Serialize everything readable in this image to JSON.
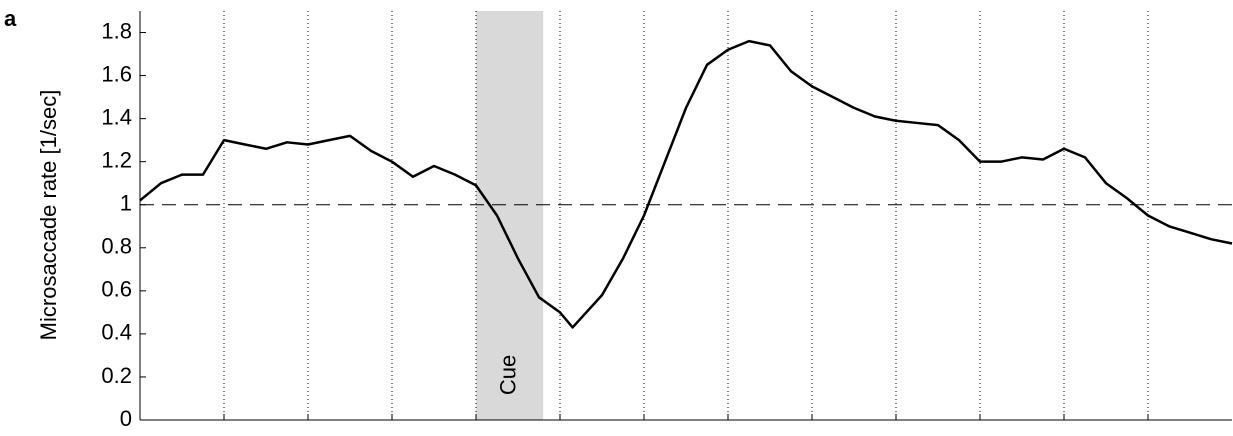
{
  "chart_data": {
    "type": "line",
    "panel_label": "a",
    "ylabel": "Microsaccade rate [1/sec]",
    "annotation": "Cue",
    "span": [
      4,
      4.8
    ],
    "span_color": "#d9d9d9",
    "hline": 1,
    "x": [
      0,
      0.25,
      0.5,
      0.75,
      1,
      1.25,
      1.5,
      1.75,
      2,
      2.25,
      2.5,
      2.75,
      3,
      3.25,
      3.5,
      3.75,
      4,
      4.25,
      4.5,
      4.75,
      5,
      5.15,
      5.5,
      5.75,
      6,
      6.25,
      6.5,
      6.75,
      7,
      7.25,
      7.5,
      7.75,
      8,
      8.25,
      8.5,
      8.75,
      9,
      9.25,
      9.5,
      9.75,
      10,
      10.25,
      10.5,
      10.75,
      11,
      11.25,
      11.5,
      11.75,
      12,
      12.25,
      12.5,
      12.75,
      13
    ],
    "series": [
      {
        "color": "#000000",
        "values": [
          1.02,
          1.1,
          1.14,
          1.14,
          1.3,
          1.28,
          1.26,
          1.29,
          1.28,
          1.3,
          1.32,
          1.25,
          1.2,
          1.13,
          1.18,
          1.14,
          1.09,
          0.95,
          0.75,
          0.57,
          0.5,
          0.43,
          0.58,
          0.75,
          0.95,
          1.2,
          1.45,
          1.65,
          1.72,
          1.76,
          1.74,
          1.62,
          1.55,
          1.5,
          1.45,
          1.41,
          1.39,
          1.38,
          1.37,
          1.3,
          1.2,
          1.2,
          1.22,
          1.21,
          1.26,
          1.22,
          1.1,
          1.03,
          0.95,
          0.9,
          0.87,
          0.84,
          0.82
        ]
      }
    ],
    "xlim": [
      0,
      13
    ],
    "xticks": [
      1,
      2,
      3,
      4,
      5,
      6,
      7,
      8,
      9,
      10,
      11,
      12
    ],
    "ylim": [
      0,
      1.9
    ],
    "yticks": [
      0,
      0.2,
      0.4,
      0.6,
      0.8,
      1,
      1.2,
      1.4,
      1.6,
      1.8
    ],
    "grid": true
  }
}
